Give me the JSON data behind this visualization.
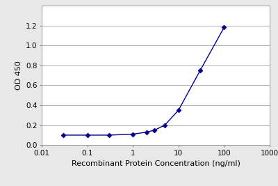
{
  "x": [
    0.03,
    0.1,
    0.3,
    1.0,
    2.0,
    3.0,
    5.0,
    10.0,
    30.0,
    100.0
  ],
  "y": [
    0.1,
    0.1,
    0.1,
    0.11,
    0.13,
    0.15,
    0.2,
    0.35,
    0.75,
    1.18
  ],
  "line_color": "#00008B",
  "marker_color": "#00008B",
  "marker": "D",
  "marker_size": 3.5,
  "xlabel": "Recombinant Protein Concentration (ng/ml)",
  "ylabel": "OD 450",
  "xlim": [
    0.01,
    1000
  ],
  "ylim": [
    0.0,
    1.4
  ],
  "yticks": [
    0.0,
    0.2,
    0.4,
    0.6,
    0.8,
    1.0,
    1.2
  ],
  "background_color": "#e8e8e8",
  "plot_bg_color": "#ffffff",
  "grid_color": "#b0b0b0",
  "label_fontsize": 8,
  "tick_fontsize": 7.5
}
